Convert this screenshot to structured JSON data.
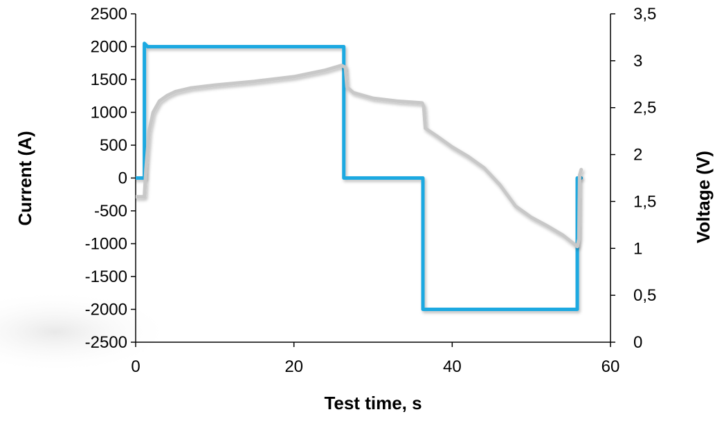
{
  "chart_data": {
    "type": "line",
    "xlabel": "Test time, s",
    "ylabel_left": "Current (A)",
    "ylabel_right": "Voltage (V)",
    "xlim": [
      0,
      60
    ],
    "ylim_left": [
      -2500,
      2500
    ],
    "ylim_right": [
      0,
      3.5
    ],
    "x_ticks": [
      0,
      20,
      40,
      60
    ],
    "x_tick_labels": [
      "0",
      "20",
      "40",
      "60"
    ],
    "y_left_ticks": [
      2500,
      2000,
      1500,
      1000,
      500,
      0,
      -500,
      -1000,
      -1500,
      -2000,
      -2500
    ],
    "y_left_tick_labels": [
      "2500",
      "2000",
      "1500",
      "1000",
      "500",
      "0",
      "-500",
      "-1000",
      "-1500",
      "-2000",
      "-2500"
    ],
    "y_right_ticks": [
      3.5,
      3,
      2.5,
      2,
      1.5,
      1,
      0.5,
      0
    ],
    "y_right_tick_labels": [
      "3,5",
      "3",
      "2,5",
      "2",
      "1,5",
      "1",
      "0,5",
      "0"
    ],
    "grid": false,
    "series": [
      {
        "axis": "left",
        "color": "#1CA9E1",
        "points": [
          [
            0,
            0
          ],
          [
            1.1,
            0
          ],
          [
            1.1,
            2050
          ],
          [
            1.5,
            2000
          ],
          [
            26.3,
            2000
          ],
          [
            26.3,
            0
          ],
          [
            36.3,
            0
          ],
          [
            36.3,
            -2000
          ],
          [
            55.8,
            -2000
          ],
          [
            55.8,
            0
          ],
          [
            56.3,
            0
          ]
        ]
      },
      {
        "axis": "right",
        "color": "#C8C8C8",
        "points": [
          [
            0,
            1.55
          ],
          [
            1.1,
            1.55
          ],
          [
            1.3,
            1.85
          ],
          [
            1.7,
            2.25
          ],
          [
            2.2,
            2.45
          ],
          [
            3,
            2.57
          ],
          [
            4,
            2.63
          ],
          [
            5,
            2.67
          ],
          [
            7,
            2.71
          ],
          [
            10,
            2.74
          ],
          [
            15,
            2.78
          ],
          [
            20,
            2.83
          ],
          [
            24,
            2.9
          ],
          [
            26,
            2.95
          ],
          [
            26.5,
            2.93
          ],
          [
            26.7,
            2.72
          ],
          [
            27.5,
            2.66
          ],
          [
            30,
            2.6
          ],
          [
            33,
            2.57
          ],
          [
            36.2,
            2.55
          ],
          [
            36.4,
            2.51
          ],
          [
            36.6,
            2.28
          ],
          [
            38,
            2.2
          ],
          [
            40,
            2.08
          ],
          [
            42,
            1.98
          ],
          [
            44,
            1.86
          ],
          [
            46,
            1.68
          ],
          [
            48,
            1.45
          ],
          [
            50,
            1.33
          ],
          [
            52,
            1.24
          ],
          [
            54,
            1.14
          ],
          [
            55.8,
            1.02
          ],
          [
            56.0,
            1.1
          ],
          [
            56.1,
            1.78
          ],
          [
            56.3,
            1.84
          ]
        ]
      }
    ]
  }
}
